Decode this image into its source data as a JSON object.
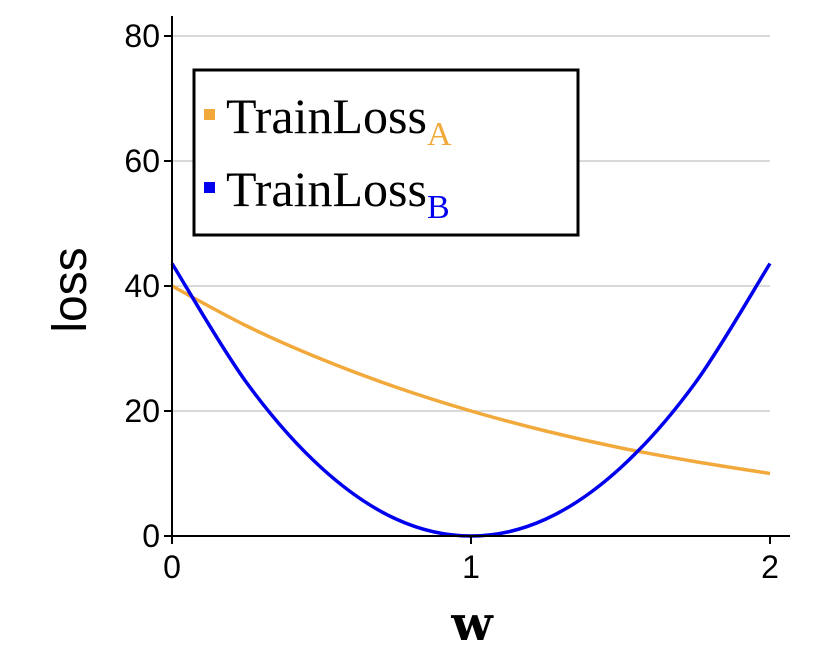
{
  "chart_data": {
    "type": "line",
    "xlabel": "w",
    "ylabel": "loss",
    "xlim": [
      0,
      2
    ],
    "ylim": [
      0,
      80
    ],
    "x_ticks": [
      0,
      1,
      2
    ],
    "y_ticks": [
      0,
      20,
      40,
      60,
      80
    ],
    "grid": "horizontal",
    "legend_placement": "top-left",
    "series": [
      {
        "name": "TrainLoss",
        "subscript": "A",
        "color": "#f2a93b",
        "x": [
          0,
          0.25,
          0.5,
          0.75,
          1.0,
          1.25,
          1.5,
          1.75,
          2.0
        ],
        "y": [
          40,
          33.6,
          28.3,
          23.8,
          20.0,
          16.8,
          14.1,
          11.9,
          10.0
        ]
      },
      {
        "name": "TrainLoss",
        "subscript": "B",
        "color": "#0000ee",
        "x": [
          0,
          0.25,
          0.5,
          0.75,
          1.0,
          1.25,
          1.5,
          1.75,
          2.0
        ],
        "y": [
          43.6,
          24.5,
          10.9,
          2.7,
          0,
          2.7,
          10.9,
          24.5,
          43.6
        ]
      }
    ]
  }
}
